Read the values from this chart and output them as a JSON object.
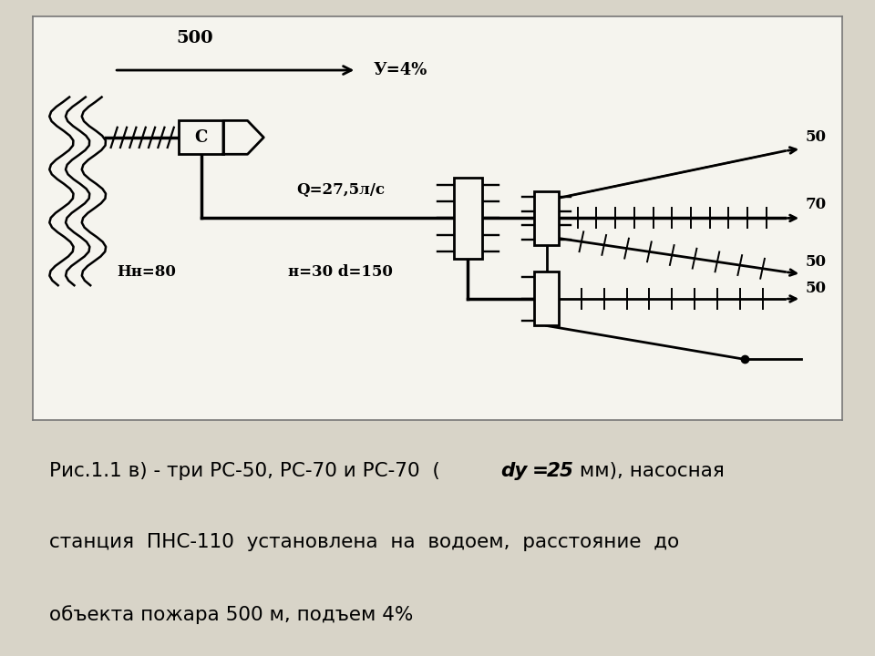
{
  "bg_color": "#d8d4c8",
  "diagram_bg": "#f5f4ee",
  "tc": "#000000",
  "lw": 2.0,
  "label_500": "500",
  "label_slope": "У=4%",
  "label_C": "С",
  "label_Q": "Q=27,5л/с",
  "label_Hn": "Нн=80",
  "label_n_d": "н=30 d=150",
  "label_50_top": "50",
  "label_70": "70",
  "label_50_mid": "50",
  "label_50_bot": "50",
  "caption_italic": "dy=25",
  "caption_pre": "Рис.1.1 в) - три РС-50, РС-70 и РС-70  (",
  "caption_post": " мм), насосная",
  "caption_line2": "станция  ПНС-110  установлена  на  водоем,  расстояние  до",
  "caption_line3": "объекта пожара 500 м, подъем 4%"
}
